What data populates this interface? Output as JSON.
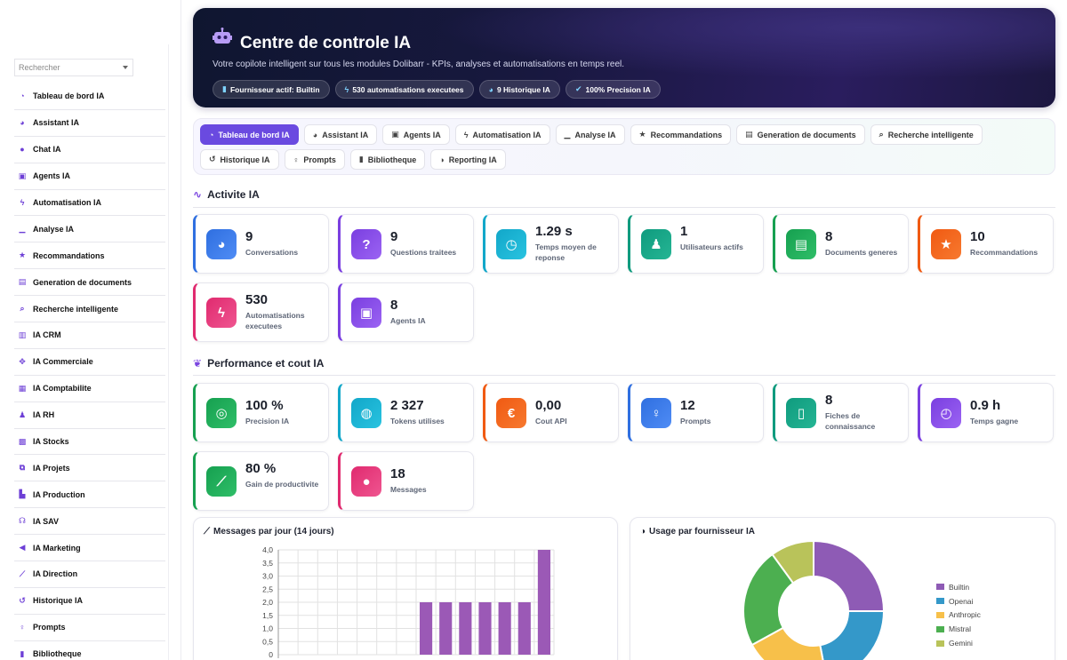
{
  "sidebar": {
    "search_placeholder": "Rechercher",
    "items": [
      {
        "label": "Tableau de bord IA",
        "icon": "dashboard-icon",
        "glyph": "◔"
      },
      {
        "label": "Assistant IA",
        "icon": "comments-icon",
        "glyph": "◕"
      },
      {
        "label": "Chat IA",
        "icon": "chat-icon",
        "glyph": "●"
      },
      {
        "label": "Agents IA",
        "icon": "robot-icon",
        "glyph": "▣"
      },
      {
        "label": "Automatisation IA",
        "icon": "bolt-icon",
        "glyph": "ϟ"
      },
      {
        "label": "Analyse IA",
        "icon": "chart-icon",
        "glyph": "▁"
      },
      {
        "label": "Recommandations",
        "icon": "star-icon",
        "glyph": "★"
      },
      {
        "label": "Generation de documents",
        "icon": "document-icon",
        "glyph": "▤"
      },
      {
        "label": "Recherche intelligente",
        "icon": "search-icon",
        "glyph": "⌕"
      },
      {
        "label": "IA CRM",
        "icon": "address-book-icon",
        "glyph": "▥"
      },
      {
        "label": "IA Commerciale",
        "icon": "handshake-icon",
        "glyph": "✥"
      },
      {
        "label": "IA Comptabilite",
        "icon": "calculator-icon",
        "glyph": "▦"
      },
      {
        "label": "IA RH",
        "icon": "users-icon",
        "glyph": "♟"
      },
      {
        "label": "IA Stocks",
        "icon": "warehouse-icon",
        "glyph": "▩"
      },
      {
        "label": "IA Projets",
        "icon": "project-diagram-icon",
        "glyph": "⧉"
      },
      {
        "label": "IA Production",
        "icon": "industry-icon",
        "glyph": "▙"
      },
      {
        "label": "IA SAV",
        "icon": "headset-icon",
        "glyph": "☊"
      },
      {
        "label": "IA Marketing",
        "icon": "bullhorn-icon",
        "glyph": "◀"
      },
      {
        "label": "IA Direction",
        "icon": "chart-line-icon",
        "glyph": "⟋"
      },
      {
        "label": "Historique IA",
        "icon": "history-icon",
        "glyph": "↺"
      },
      {
        "label": "Prompts",
        "icon": "lightbulb-icon",
        "glyph": "♀"
      },
      {
        "label": "Bibliotheque",
        "icon": "book-icon",
        "glyph": "▮"
      }
    ]
  },
  "hero": {
    "title": "Centre de controle IA",
    "subtitle": "Votre copilote intelligent sur tous les modules Dolibarr - KPIs, analyses et automatisations en temps reel.",
    "chips": [
      {
        "label": "Fournisseur actif: Builtin",
        "icon": "database-icon",
        "glyph": "▮"
      },
      {
        "label": "530 automatisations executees",
        "icon": "bolt-icon",
        "glyph": "ϟ"
      },
      {
        "label": "9 Historique IA",
        "icon": "comments-icon",
        "glyph": "◕"
      },
      {
        "label": "100% Precision IA",
        "icon": "check-circle-icon",
        "glyph": "✔"
      }
    ]
  },
  "tabs": [
    {
      "label": "Tableau de bord IA",
      "icon": "dashboard-icon",
      "glyph": "◔",
      "active": true
    },
    {
      "label": "Assistant IA",
      "icon": "comments-icon",
      "glyph": "◕"
    },
    {
      "label": "Agents IA",
      "icon": "robot-icon",
      "glyph": "▣"
    },
    {
      "label": "Automatisation IA",
      "icon": "bolt-icon",
      "glyph": "ϟ"
    },
    {
      "label": "Analyse IA",
      "icon": "chart-icon",
      "glyph": "▁"
    },
    {
      "label": "Recommandations",
      "icon": "star-icon",
      "glyph": "★"
    },
    {
      "label": "Generation de documents",
      "icon": "document-icon",
      "glyph": "▤"
    },
    {
      "label": "Recherche intelligente",
      "icon": "search-icon",
      "glyph": "⌕"
    },
    {
      "label": "Historique IA",
      "icon": "history-icon",
      "glyph": "↺"
    },
    {
      "label": "Prompts",
      "icon": "lightbulb-icon",
      "glyph": "♀"
    },
    {
      "label": "Bibliotheque",
      "icon": "book-icon",
      "glyph": "▮"
    },
    {
      "label": "Reporting IA",
      "icon": "pie-chart-icon",
      "glyph": "◑"
    }
  ],
  "activity": {
    "title": "Activite IA",
    "icon": "wave-icon",
    "cards": [
      {
        "value": "9",
        "label": "Conversations",
        "icon": "comments-icon",
        "glyph": "◕",
        "color": "#2f6fe0",
        "gradient_to": "#4f8cf5"
      },
      {
        "value": "9",
        "label": "Questions traitees",
        "icon": "question-icon",
        "glyph": "?",
        "color": "#7a3fe0",
        "gradient_to": "#9b63f3"
      },
      {
        "value": "1.29 s",
        "label": "Temps moyen de reponse",
        "icon": "stopwatch-icon",
        "glyph": "◷",
        "color": "#12a7c9",
        "gradient_to": "#28c3e0"
      },
      {
        "value": "1",
        "label": "Utilisateurs actifs",
        "icon": "users-icon",
        "glyph": "♟",
        "color": "#0f9b7e",
        "gradient_to": "#25b594"
      },
      {
        "value": "8",
        "label": "Documents generes",
        "icon": "document-icon",
        "glyph": "▤",
        "color": "#16a050",
        "gradient_to": "#2fbe68"
      },
      {
        "value": "10",
        "label": "Recommandations",
        "icon": "star-icon",
        "glyph": "★",
        "color": "#f05a12",
        "gradient_to": "#f7792f"
      },
      {
        "value": "530",
        "label": "Automatisations executees",
        "icon": "bolt-icon",
        "glyph": "ϟ",
        "color": "#e02a6f",
        "gradient_to": "#ef5590"
      },
      {
        "value": "8",
        "label": "Agents IA",
        "icon": "robot-icon",
        "glyph": "▣",
        "color": "#7a3fe0",
        "gradient_to": "#9b63f3"
      }
    ]
  },
  "performance": {
    "title": "Performance et cout IA",
    "icon": "brain-icon",
    "cards": [
      {
        "value": "100 %",
        "label": "Precision IA",
        "icon": "target-icon",
        "glyph": "◎",
        "color": "#16a050",
        "gradient_to": "#2fbe68"
      },
      {
        "value": "2 327",
        "label": "Tokens utilises",
        "icon": "coins-icon",
        "glyph": "◍",
        "color": "#12a7c9",
        "gradient_to": "#28c3e0"
      },
      {
        "value": "0,00",
        "label": "Cout API",
        "icon": "euro-icon",
        "glyph": "€",
        "color": "#f05a12",
        "gradient_to": "#f7792f"
      },
      {
        "value": "12",
        "label": "Prompts",
        "icon": "lightbulb-icon",
        "glyph": "♀",
        "color": "#2f6fe0",
        "gradient_to": "#4f8cf5"
      },
      {
        "value": "8",
        "label": "Fiches de connaissance",
        "icon": "book-open-icon",
        "glyph": "▯",
        "color": "#0f9b7e",
        "gradient_to": "#25b594"
      },
      {
        "value": "0.9 h",
        "label": "Temps gagne",
        "icon": "clock-icon",
        "glyph": "◴",
        "color": "#7a3fe0",
        "gradient_to": "#9b63f3"
      },
      {
        "value": "80 %",
        "label": "Gain de productivite",
        "icon": "chart-line-icon",
        "glyph": "⟋",
        "color": "#16a050",
        "gradient_to": "#2fbe68"
      },
      {
        "value": "18",
        "label": "Messages",
        "icon": "message-icon",
        "glyph": "●",
        "color": "#e02a6f",
        "gradient_to": "#ef5590"
      }
    ]
  },
  "messages_panel": {
    "title": "Messages par jour (14 jours)",
    "icon": "chart-line-icon",
    "glyph": "⟋"
  },
  "usage_panel": {
    "title": "Usage par fournisseur IA",
    "icon": "pie-chart-icon",
    "glyph": "◑"
  },
  "chart_data": [
    {
      "type": "bar",
      "title": "Messages par jour (14 jours)",
      "categories": [
        "",
        "",
        "",
        "",
        "",
        "",
        "",
        "",
        "",
        "",
        "",
        "",
        "",
        ""
      ],
      "values": [
        0,
        0,
        0,
        0,
        0,
        0,
        0,
        2,
        2,
        2,
        2,
        2,
        2,
        4
      ],
      "ylim": [
        0,
        4
      ],
      "yticks": [
        "0",
        "0,5",
        "1,0",
        "1,5",
        "2,0",
        "2,5",
        "3,0",
        "3,5",
        "4,0"
      ],
      "grid": true,
      "color": "#9b59b6"
    },
    {
      "type": "pie",
      "title": "Usage par fournisseur IA",
      "legend_position": "right",
      "labels": [
        "Builtin",
        "Openai",
        "Anthropic",
        "Mistral",
        "Gemini"
      ],
      "values": [
        25,
        22,
        20,
        23,
        10
      ],
      "colors": [
        "#8e5bb5",
        "#3498c9",
        "#f7c04a",
        "#4caf50",
        "#b9c35a"
      ]
    }
  ]
}
